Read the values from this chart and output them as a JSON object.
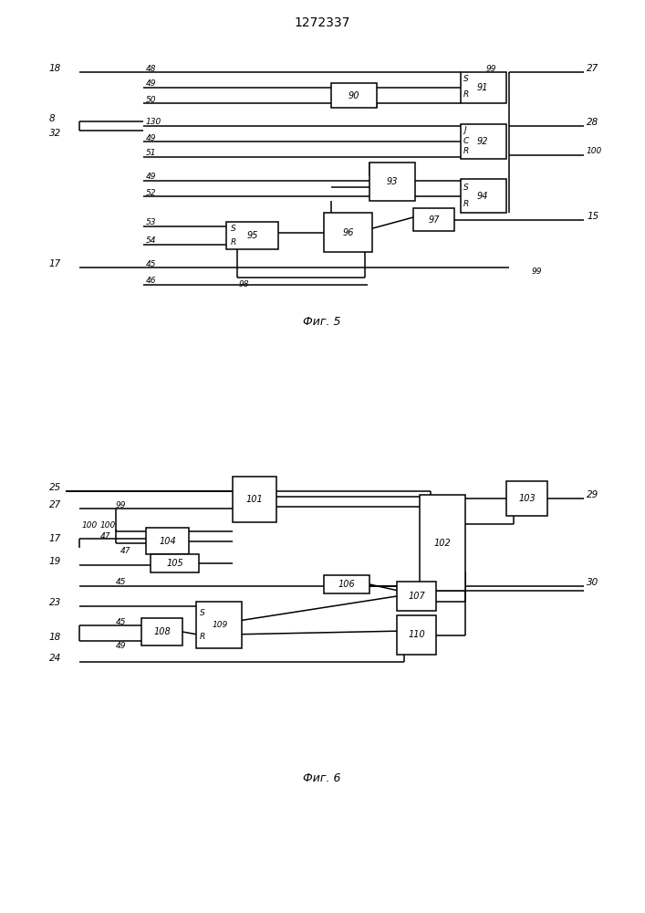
{
  "title": "1272337",
  "fig5_label": "Фиг. 5",
  "fig6_label": "Фиг. 6",
  "bg_color": "#ffffff"
}
